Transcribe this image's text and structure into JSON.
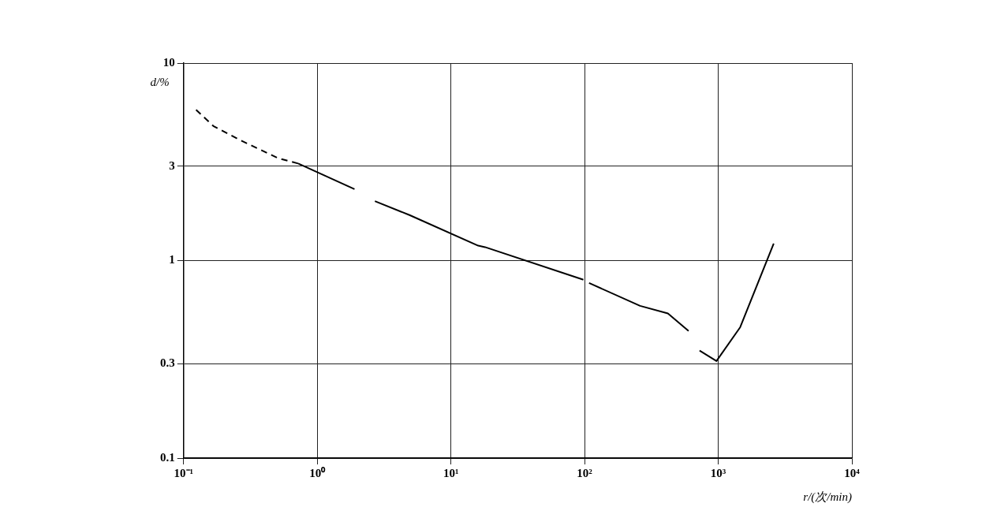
{
  "chart_data": {
    "type": "line",
    "xlabel": "r/(次/min)",
    "ylabel": "d/%",
    "log": "xy",
    "grid": true,
    "marker": "none",
    "legend": false,
    "xlim": [
      0.1,
      10000
    ],
    "xticks": [
      {
        "value": 0.1,
        "label": "10⁻¹"
      },
      {
        "value": 1,
        "label": "10⁰"
      },
      {
        "value": 10,
        "label": "10¹"
      },
      {
        "value": 100,
        "label": "10²"
      },
      {
        "value": 1000,
        "label": "10³"
      },
      {
        "value": 10000,
        "label": "10⁴"
      }
    ],
    "ylim": [
      0.1,
      10
    ],
    "yticks": [
      0.1,
      0.3,
      1,
      3,
      10
    ],
    "series": [
      {
        "color": "#000000",
        "line_style": "dashed",
        "x": [
          0.124,
          0.167,
          0.26,
          0.51,
          0.72
        ],
        "values": [
          5.8,
          4.8,
          4.1,
          3.3,
          3.1
        ]
      },
      {
        "color": "#000000",
        "line_style": "solid",
        "x": [
          0.72,
          1.9
        ],
        "values": [
          3.1,
          2.3
        ]
      },
      {
        "color": "#000000",
        "line_style": "solid",
        "x": [
          2.7,
          4.9,
          16,
          18,
          98
        ],
        "values": [
          2.0,
          1.7,
          1.19,
          1.17,
          0.8
        ]
      },
      {
        "color": "#000000",
        "line_style": "solid",
        "x": [
          108,
          260,
          420,
          600
        ],
        "values": [
          0.77,
          0.59,
          0.54,
          0.44
        ]
      },
      {
        "color": "#000000",
        "line_style": "solid",
        "x": [
          725,
          970,
          1460,
          2600
        ],
        "values": [
          0.35,
          0.31,
          0.46,
          1.22
        ]
      }
    ]
  }
}
